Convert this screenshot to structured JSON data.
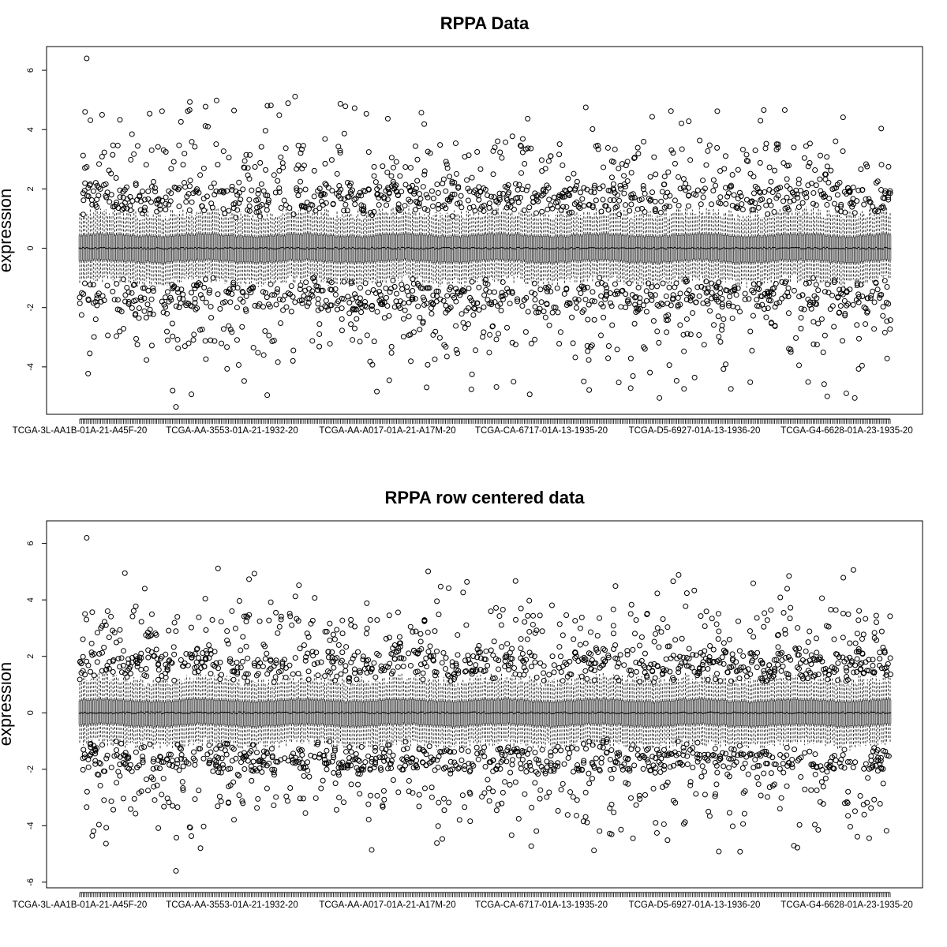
{
  "chart_data": [
    {
      "type": "boxplot",
      "title": "RPPA Data",
      "xlabel": "",
      "ylabel": "expression",
      "ylim": [
        -5.6,
        6.8
      ],
      "yticks": [
        -4,
        -2,
        0,
        2,
        4,
        6
      ],
      "xtick_labels": [
        "TCGA-3L-AA1B-01A-21-A45F-20",
        "TCGA-AA-3553-01A-21-1932-20",
        "TCGA-AA-A017-01A-21-A17M-20",
        "TCGA-CA-6717-01A-13-1935-20",
        "TCGA-D5-6927-01A-13-1936-20",
        "TCGA-G4-6628-01A-23-1935-20"
      ],
      "n_samples": 464,
      "median": 0.0,
      "typical_q1": -0.35,
      "typical_q3": 0.35,
      "typical_whisker_low": -0.95,
      "typical_whisker_high": 1.0,
      "outlier_max": 6.4,
      "outlier_min": -5.35,
      "grid": false,
      "legend": "none"
    },
    {
      "type": "boxplot",
      "title": "RPPA row centered data",
      "xlabel": "",
      "ylabel": "expression",
      "ylim": [
        -6.2,
        6.8
      ],
      "yticks": [
        -6,
        -4,
        -2,
        0,
        2,
        4,
        6
      ],
      "xtick_labels": [
        "TCGA-3L-AA1B-01A-21-A45F-20",
        "TCGA-AA-3553-01A-21-1932-20",
        "TCGA-AA-A017-01A-21-A17M-20",
        "TCGA-CA-6717-01A-13-1935-20",
        "TCGA-D5-6927-01A-13-1936-20",
        "TCGA-G4-6628-01A-23-1935-20"
      ],
      "n_samples": 464,
      "median": 0.0,
      "typical_q1": -0.35,
      "typical_q3": 0.35,
      "typical_whisker_low": -0.95,
      "typical_whisker_high": 1.0,
      "outlier_max": 6.2,
      "outlier_min": -5.6,
      "grid": false,
      "legend": "none"
    }
  ]
}
